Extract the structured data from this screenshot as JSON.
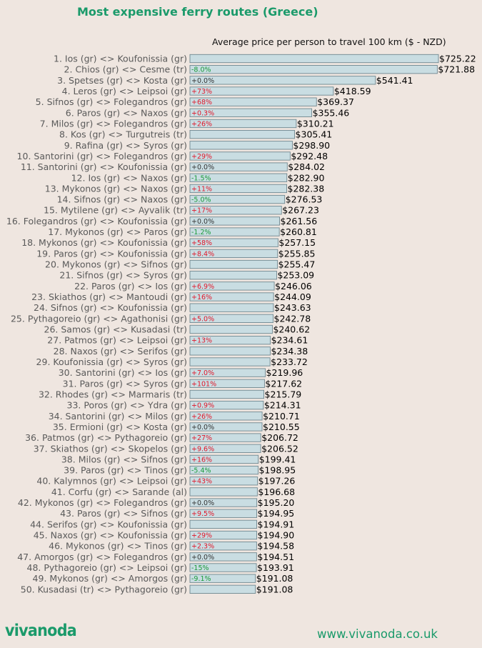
{
  "title": "Most expensive ferry routes (Greece)",
  "brand": {
    "logo": "vivanoda",
    "website": "www.vivanoda.co.uk",
    "accent_color": "#1a9a6a"
  },
  "colors": {
    "bar_fill": "#c9dde2",
    "bar_stroke": "#6f8790",
    "label_color": "#5a5a5a",
    "increase_color": "#e0182a",
    "decrease_color": "#1a9a3a",
    "neutral_color": "#333333"
  },
  "chart_data": {
    "type": "bar",
    "orientation": "horizontal",
    "title": "Average price per person to travel 100 km ($ - NZD)",
    "grid": false,
    "xlim": [
      0,
      725.22
    ],
    "categories": [
      "1. Ios (gr) <> Koufonissia (gr)",
      "2. Chios (gr) <> Cesme (tr)",
      "3. Spetses (gr) <> Kosta (gr)",
      "4. Leros (gr) <> Leipsoi (gr)",
      "5. Sifnos (gr) <> Folegandros (gr)",
      "6. Paros (gr) <> Naxos (gr)",
      "7. Milos (gr) <> Folegandros (gr)",
      "8. Kos (gr) <> Turgutreis (tr)",
      "9. Rafina (gr) <> Syros (gr)",
      "10. Santorini (gr) <> Folegandros (gr)",
      "11. Santorini (gr) <> Koufonissia (gr)",
      "12. Ios (gr) <> Naxos (gr)",
      "13. Mykonos (gr) <> Naxos (gr)",
      "14. Sifnos (gr) <> Naxos (gr)",
      "15. Mytilene (gr) <> Ayvalik (tr)",
      "16. Folegandros (gr) <> Koufonissia (gr)",
      "17. Mykonos (gr) <> Paros (gr)",
      "18. Mykonos (gr) <> Koufonissia (gr)",
      "19. Paros (gr) <> Koufonissia (gr)",
      "20. Mykonos (gr) <> Sifnos (gr)",
      "21. Sifnos (gr) <> Syros (gr)",
      "22. Paros (gr) <> Ios (gr)",
      "23. Skiathos (gr) <> Mantoudi (gr)",
      "24. Sifnos (gr) <> Koufonissia (gr)",
      "25. Pythagoreio (gr) <> Agathonisi (gr)",
      "26. Samos (gr) <> Kusadasi (tr)",
      "27. Patmos (gr) <> Leipsoi (gr)",
      "28. Naxos (gr) <> Serifos (gr)",
      "29. Koufonissia (gr) <> Syros (gr)",
      "30. Santorini (gr) <> Ios (gr)",
      "31. Paros (gr) <> Syros (gr)",
      "32. Rhodes (gr) <> Marmaris (tr)",
      "33. Poros (gr) <> Ydra (gr)",
      "34. Santorini (gr) <> Milos (gr)",
      "35. Ermioni (gr) <> Kosta (gr)",
      "36. Patmos (gr) <> Pythagoreio (gr)",
      "37. Skiathos (gr) <> Skopelos (gr)",
      "38. Milos (gr) <> Sifnos (gr)",
      "39. Paros (gr) <> Tinos (gr)",
      "40. Kalymnos (gr) <> Leipsoi (gr)",
      "41. Corfu (gr) <> Sarande (al)",
      "42. Mykonos (gr) <> Folegandros (gr)",
      "43. Paros (gr) <> Sifnos (gr)",
      "44. Serifos (gr) <> Koufonissia (gr)",
      "45. Naxos (gr) <> Koufonissia (gr)",
      "46. Mykonos (gr) <> Tinos (gr)",
      "47. Amorgos (gr) <> Folegandros (gr)",
      "48. Pythagoreio (gr) <> Leipsoi (gr)",
      "49. Mykonos (gr) <> Amorgos (gr)",
      "50. Kusadasi (tr) <> Pythagoreio (gr)"
    ],
    "values": [
      725.22,
      721.88,
      541.41,
      418.59,
      369.37,
      355.46,
      310.21,
      305.41,
      298.9,
      292.48,
      284.02,
      282.9,
      282.38,
      276.53,
      267.23,
      261.56,
      260.81,
      257.15,
      255.85,
      255.47,
      253.09,
      246.06,
      244.09,
      243.63,
      242.78,
      240.62,
      234.61,
      234.38,
      233.72,
      219.96,
      217.62,
      215.79,
      214.31,
      210.71,
      210.55,
      206.72,
      206.52,
      199.41,
      198.95,
      197.26,
      196.68,
      195.2,
      194.95,
      194.91,
      194.9,
      194.58,
      194.51,
      193.91,
      191.08,
      191.08
    ],
    "value_labels": [
      "$725.22",
      "$721.88",
      "$541.41",
      "$418.59",
      "$369.37",
      "$355.46",
      "$310.21",
      "$305.41",
      "$298.90",
      "$292.48",
      "$284.02",
      "$282.90",
      "$282.38",
      "$276.53",
      "$267.23",
      "$261.56",
      "$260.81",
      "$257.15",
      "$255.85",
      "$255.47",
      "$253.09",
      "$246.06",
      "$244.09",
      "$243.63",
      "$242.78",
      "$240.62",
      "$234.61",
      "$234.38",
      "$233.72",
      "$219.96",
      "$217.62",
      "$215.79",
      "$214.31",
      "$210.71",
      "$210.55",
      "$206.72",
      "$206.52",
      "$199.41",
      "$198.95",
      "$197.26",
      "$196.68",
      "$195.20",
      "$194.95",
      "$194.91",
      "$194.90",
      "$194.58",
      "$194.51",
      "$193.91",
      "$191.08",
      "$191.08"
    ],
    "changes": [
      "",
      "-8.0%",
      "+0.0%",
      "+73%",
      "+68%",
      "+0.3%",
      "+26%",
      "",
      "",
      "+29%",
      "+0.0%",
      "-1.5%",
      "+11%",
      "-5.0%",
      "+17%",
      "+0.0%",
      "-1.2%",
      "+58%",
      "+8.4%",
      "",
      "",
      "+6.9%",
      "+16%",
      "",
      "+5.0%",
      "",
      "+13%",
      "",
      "",
      "+7.0%",
      "+101%",
      "",
      "+0.9%",
      "+26%",
      "+0.0%",
      "+27%",
      "+9.6%",
      "+16%",
      "-5.4%",
      "+43%",
      "",
      "+0.0%",
      "+9.5%",
      "",
      "+29%",
      "+2.3%",
      "+0.0%",
      "-15%",
      "-9.1%",
      ""
    ]
  }
}
